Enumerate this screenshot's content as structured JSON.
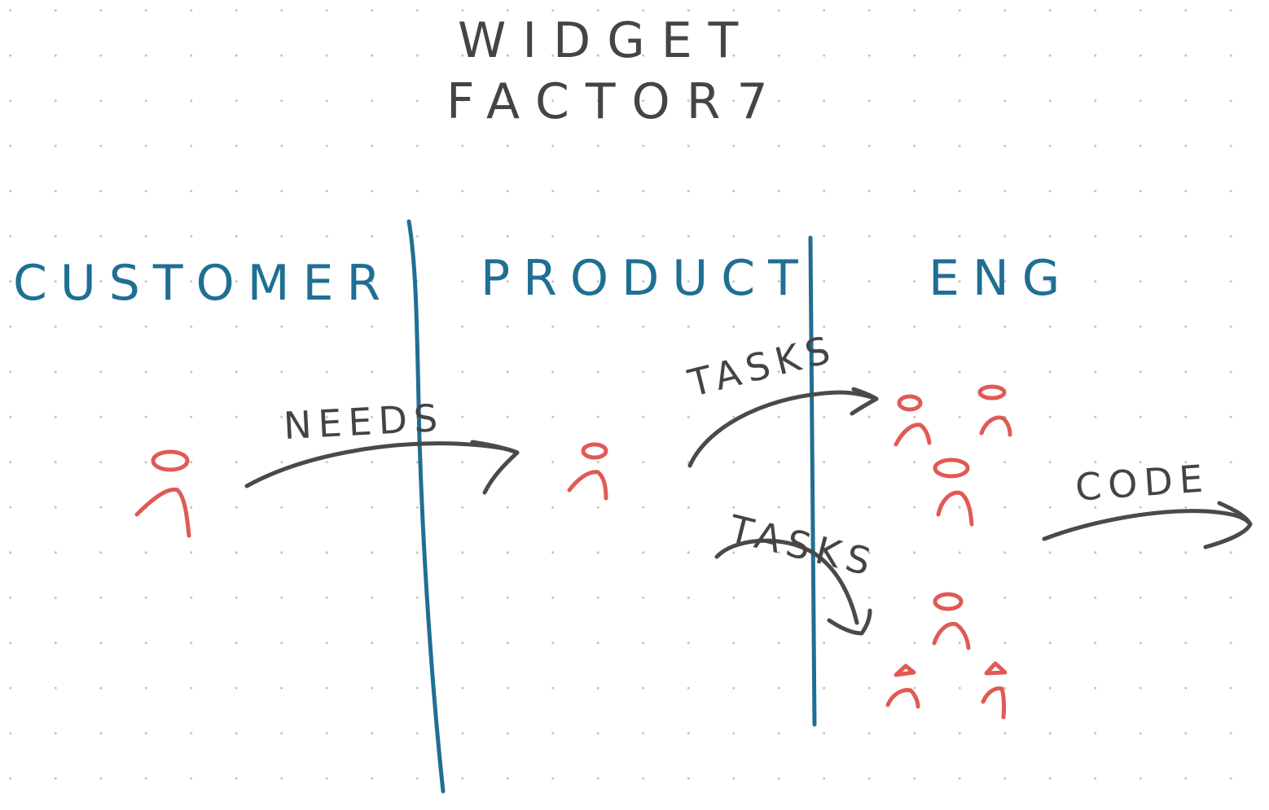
{
  "title": {
    "line1": "WIDGET",
    "line2": "FACTOR7"
  },
  "lanes": [
    {
      "label": "CUSTOMER"
    },
    {
      "label": "PRODUCT"
    },
    {
      "label": "ENG"
    }
  ],
  "arrows": [
    {
      "label": "NEEDS"
    },
    {
      "label": "TASKS"
    },
    {
      "label": "TASKS"
    },
    {
      "label": "CODE"
    }
  ],
  "colors": {
    "ink": "#4a4a4a",
    "lane": "#1f6f94",
    "person": "#e05a55",
    "grid_dot": "#c2c2c2"
  }
}
